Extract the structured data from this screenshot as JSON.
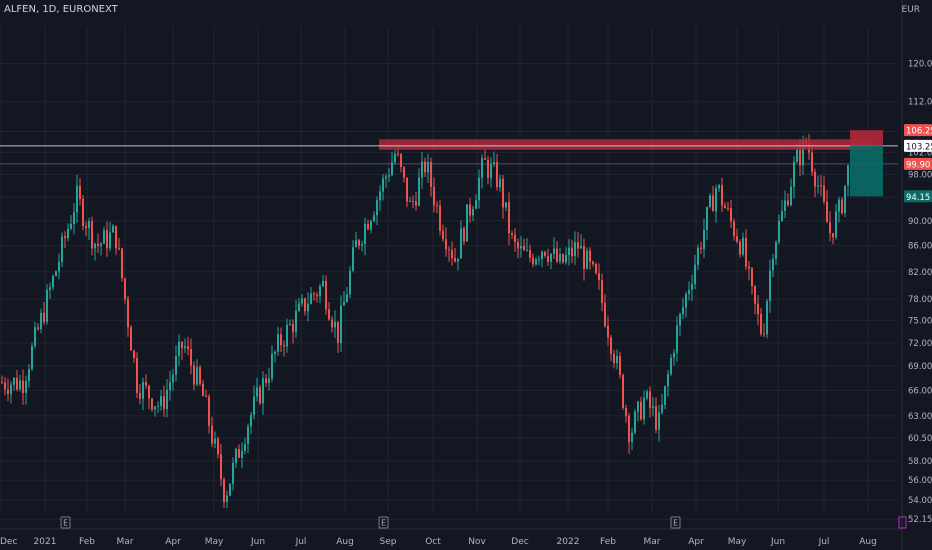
{
  "header": {
    "symbol_title": "ALFEN, 1D, EURONEXT",
    "currency": "EUR"
  },
  "chart_data": {
    "type": "candlestick",
    "symbol": "ALFEN",
    "interval": "1D",
    "exchange": "EURONEXT",
    "currency": "EUR",
    "y_scale": "log",
    "ylim": [
      51.5,
      126
    ],
    "y_ticks": [
      "120.00",
      "112.00",
      "106.00",
      "102.00",
      "98.00",
      "94.00",
      "90.00",
      "86.00",
      "82.00",
      "78.00",
      "75.00",
      "72.00",
      "69.00",
      "66.00",
      "63.00",
      "60.50",
      "58.00",
      "56.00",
      "54.00",
      "52.15"
    ],
    "x_ticks": [
      "Dec",
      "2021",
      "Feb",
      "Mar",
      "Apr",
      "May",
      "Jun",
      "Jul",
      "Aug",
      "Sep",
      "Oct",
      "Nov",
      "Dec",
      "2022",
      "Feb",
      "Mar",
      "Apr",
      "May",
      "Jun",
      "Jul",
      "Aug"
    ],
    "earnings_marker": "E",
    "earnings_positions": [
      "Feb",
      "Sep",
      "Mar"
    ],
    "colors": {
      "background": "#131722",
      "up": "#26a69a",
      "down": "#ef5350",
      "grid": "#1f2433",
      "axis_text": "#b2b5be",
      "resistance_zone": "#b2283a",
      "stop_zone": "#b2283a",
      "target_zone": "#0b6b66",
      "date_range_marker": "#9c27b0"
    },
    "price_labels": [
      {
        "text": "106.25",
        "value": 106.25,
        "style": "red"
      },
      {
        "text": "103.25",
        "value": 103.25,
        "style": "white"
      },
      {
        "text": "99.90",
        "value": 99.9,
        "style": "red"
      },
      {
        "text": "94.15",
        "value": 94.15,
        "style": "teal"
      }
    ],
    "horizontal_lines": [
      103.25,
      99.9
    ],
    "resistance_zone": {
      "from": "Sep",
      "to": "Jul",
      "low": 102.5,
      "high": 104.5
    },
    "position": {
      "entry": 103.25,
      "stop": 106.25,
      "target": 94.15
    },
    "keypoints": [
      [
        "Dec",
        67
      ],
      [
        "2021",
        82
      ],
      [
        "2021",
        94
      ],
      [
        "Feb",
        86
      ],
      [
        "Feb",
        88
      ],
      [
        "Mar",
        67
      ],
      [
        "Mar",
        64
      ],
      [
        "Apr",
        72
      ],
      [
        "Apr",
        65
      ],
      [
        "May",
        54.5
      ],
      [
        "May",
        62
      ],
      [
        "Jun",
        72
      ],
      [
        "Jul",
        78
      ],
      [
        "Jul",
        80
      ],
      [
        "Jul",
        73
      ],
      [
        "Aug",
        86
      ],
      [
        "Aug",
        94
      ],
      [
        "Sep",
        102
      ],
      [
        "Sep",
        92
      ],
      [
        "Sep",
        100
      ],
      [
        "Oct",
        90
      ],
      [
        "Oct",
        84
      ],
      [
        "Oct",
        92
      ],
      [
        "Nov",
        100
      ],
      [
        "Nov",
        97
      ],
      [
        "Nov",
        86
      ],
      [
        "Dec",
        84
      ],
      [
        "Dec",
        86
      ],
      [
        "Dec",
        83
      ],
      [
        "2022",
        86
      ],
      [
        "2022",
        80
      ],
      [
        "Feb",
        70
      ],
      [
        "Feb",
        61
      ],
      [
        "Feb",
        65
      ],
      [
        "Mar",
        62
      ],
      [
        "Mar",
        72
      ],
      [
        "Mar",
        80
      ],
      [
        "Apr",
        88
      ],
      [
        "Apr",
        96
      ],
      [
        "Apr",
        90
      ],
      [
        "May",
        86
      ],
      [
        "May",
        78
      ],
      [
        "May",
        73
      ],
      [
        "May",
        86
      ],
      [
        "Jun",
        92
      ],
      [
        "Jun",
        100
      ],
      [
        "Jun",
        104
      ],
      [
        "Jun",
        96
      ],
      [
        "Jul",
        88
      ],
      [
        "Jul",
        92
      ],
      [
        "Jul",
        102
      ],
      [
        "Jul",
        100
      ]
    ]
  }
}
